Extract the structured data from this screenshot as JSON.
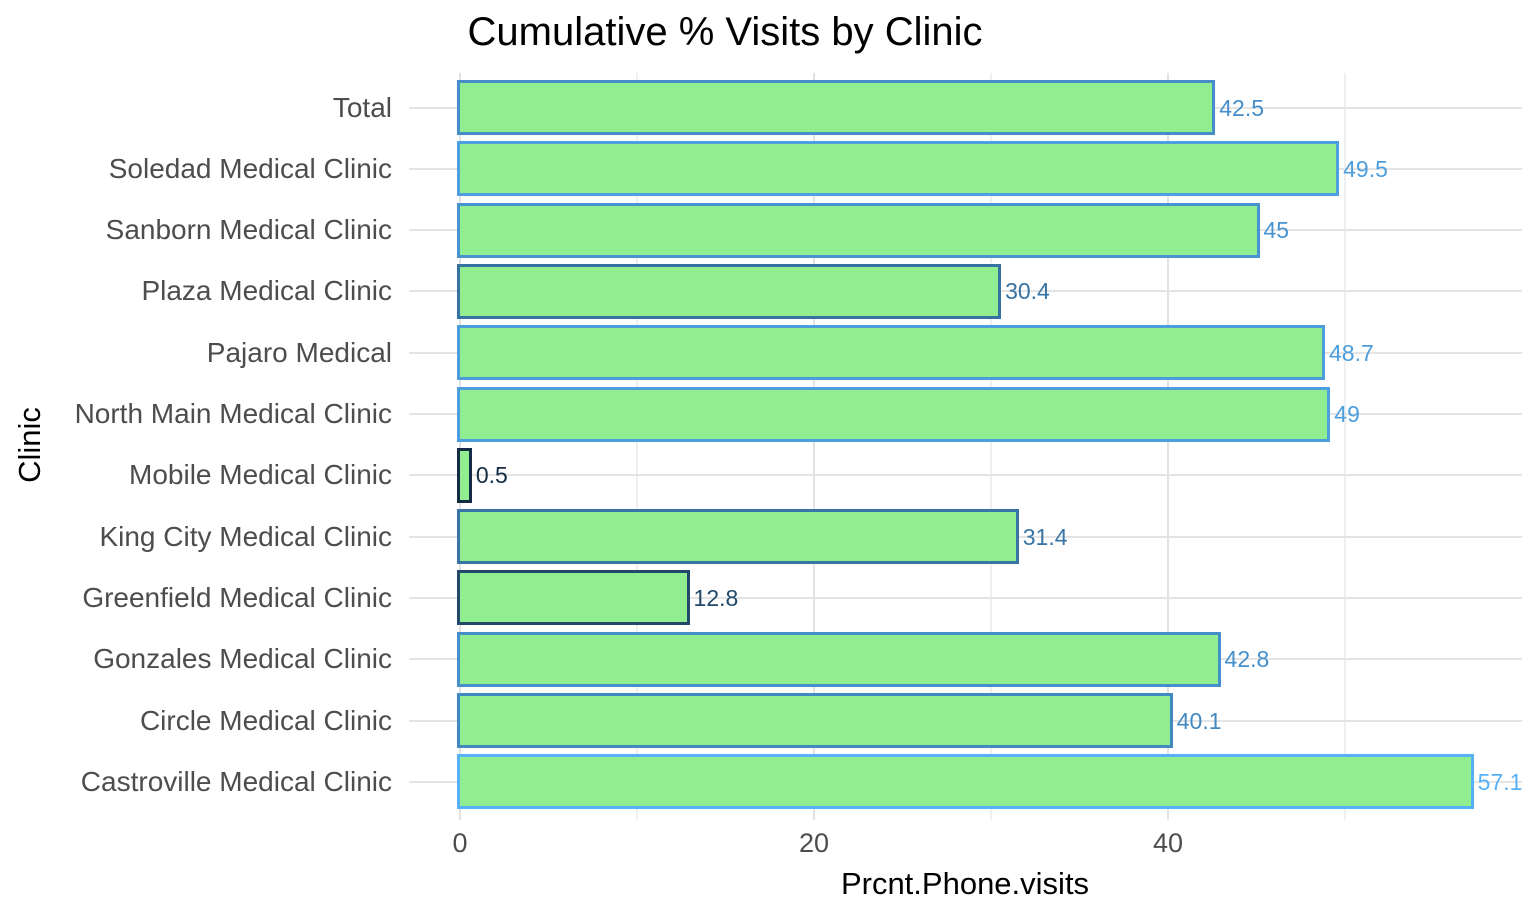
{
  "chart_data": {
    "type": "bar",
    "orientation": "horizontal",
    "title": "Cumulative % Visits by Clinic",
    "xlabel": "Prcnt.Phone.visits",
    "ylabel": "Clinic",
    "categories": [
      "Total",
      "Soledad Medical Clinic",
      "Sanborn Medical Clinic",
      "Plaza Medical Clinic",
      "Pajaro Medical",
      "North Main Medical Clinic",
      "Mobile Medical Clinic",
      "King City Medical Clinic",
      "Greenfield Medical Clinic",
      "Gonzales Medical Clinic",
      "Circle Medical Clinic",
      "Castroville Medical Clinic"
    ],
    "values": [
      42.5,
      49.5,
      45,
      30.4,
      48.7,
      49,
      0.5,
      31.4,
      12.8,
      42.8,
      40.1,
      57.1
    ],
    "value_labels": [
      "42.5",
      "49.5",
      "45",
      "30.4",
      "48.7",
      "49",
      "0.5",
      "31.4",
      "12.8",
      "42.8",
      "40.1",
      "57.1"
    ],
    "x_major_ticks": [
      0,
      20,
      40
    ],
    "x_minor_gridlines": [
      10,
      30,
      50
    ],
    "xlim": [
      0,
      60
    ],
    "grid": "on",
    "legend": "none"
  },
  "colors": {
    "background": "#FFFFFF",
    "bar_fill": "#90EE90",
    "border_gradient_low": "#132B43",
    "border_gradient_high": "#56B1F7",
    "gradient_domain": [
      0.5,
      57.1
    ],
    "title_text": "#000000",
    "axis_title_text": "#000000",
    "tick_label_text": "#4D4D4D",
    "grid_major": "#E2E2E2",
    "grid_minor": "#EFEFEF"
  }
}
